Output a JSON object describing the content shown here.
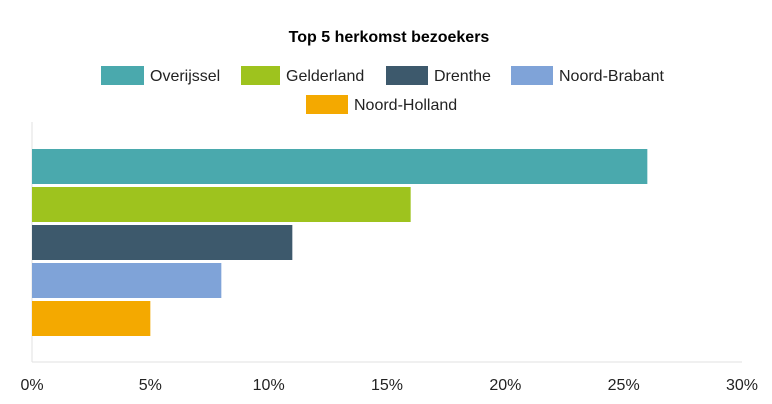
{
  "chart_data": {
    "type": "bar",
    "orientation": "horizontal",
    "title": "Top 5 herkomst bezoekers",
    "series": [
      {
        "name": "Overijssel",
        "value": 26,
        "color": "#4aa9ad"
      },
      {
        "name": "Gelderland",
        "value": 16,
        "color": "#9ec31e"
      },
      {
        "name": "Drenthe",
        "value": 11,
        "color": "#3d596c"
      },
      {
        "name": "Noord-Brabant",
        "value": 8,
        "color": "#7fa3d8"
      },
      {
        "name": "Noord-Holland",
        "value": 5,
        "color": "#f4a900"
      }
    ],
    "xlim": [
      0,
      30
    ],
    "x_ticks": [
      "0%",
      "5%",
      "10%",
      "15%",
      "20%",
      "25%",
      "30%"
    ],
    "unit": "%",
    "legend_position": "top",
    "grid": false
  }
}
